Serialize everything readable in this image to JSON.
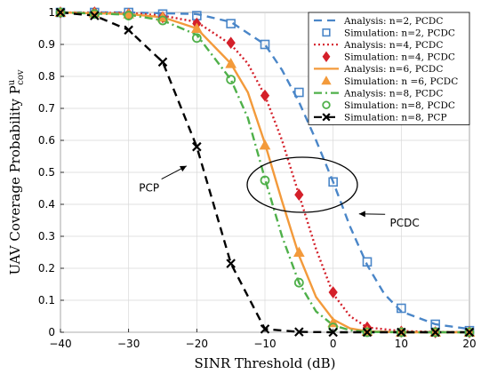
{
  "chart_data": {
    "type": "line",
    "xlabel": "SINR Threshold (dB)",
    "ylabel": "UAV Coverage Probability P",
    "ylabel_sup": "u",
    "ylabel_sub": "cov",
    "xlim": [
      -40,
      20
    ],
    "ylim": [
      0,
      1
    ],
    "xticks": [
      -40,
      -30,
      -20,
      -10,
      0,
      10,
      20
    ],
    "yticks": [
      0,
      0.1,
      0.2,
      0.3,
      0.4,
      0.5,
      0.6,
      0.7,
      0.8,
      0.9,
      1
    ],
    "grid": true,
    "legend_position": "top-right",
    "series": [
      {
        "name": "Analysis: n=2, PCDC",
        "kind": "line",
        "color": "#4a86c8",
        "dash": "dash",
        "x": [
          -40,
          -30,
          -20,
          -15,
          -10,
          -7.5,
          -5,
          -2.5,
          0,
          2.5,
          5,
          7.5,
          10,
          15,
          20
        ],
        "y": [
          1,
          1,
          0.995,
          0.97,
          0.9,
          0.82,
          0.72,
          0.6,
          0.47,
          0.33,
          0.21,
          0.12,
          0.065,
          0.025,
          0.01
        ]
      },
      {
        "name": "Simulation: n=2, PCDC",
        "kind": "marker",
        "marker": "square",
        "color": "#4a86c8",
        "x": [
          -40,
          -35,
          -30,
          -25,
          -20,
          -15,
          -10,
          -5,
          0,
          5,
          10,
          15,
          20
        ],
        "y": [
          1,
          1,
          1,
          0.995,
          0.99,
          0.965,
          0.9,
          0.75,
          0.47,
          0.22,
          0.075,
          0.025,
          0.005
        ]
      },
      {
        "name": "Analysis: n=4, PCDC",
        "kind": "line",
        "color": "#d4202a",
        "dash": "dot",
        "x": [
          -40,
          -30,
          -25,
          -20,
          -15,
          -12.5,
          -10,
          -7.5,
          -5,
          -2.5,
          0,
          2.5,
          5,
          10,
          15,
          20
        ],
        "y": [
          1,
          0.998,
          0.99,
          0.97,
          0.9,
          0.84,
          0.74,
          0.6,
          0.43,
          0.26,
          0.12,
          0.05,
          0.015,
          0.004,
          0.001,
          0
        ]
      },
      {
        "name": "Simulation: n=4, PCDC",
        "kind": "marker",
        "marker": "diamond",
        "color": "#d4202a",
        "x": [
          -40,
          -35,
          -30,
          -25,
          -20,
          -15,
          -10,
          -5,
          0,
          5,
          10,
          15,
          20
        ],
        "y": [
          1,
          1,
          0.995,
          0.985,
          0.965,
          0.905,
          0.74,
          0.43,
          0.125,
          0.015,
          0.002,
          0,
          0
        ]
      },
      {
        "name": "Analysis: n=6, PCDC",
        "kind": "line",
        "color": "#f39a3b",
        "dash": "solid",
        "x": [
          -40,
          -30,
          -25,
          -20,
          -15,
          -12.5,
          -10,
          -7.5,
          -5,
          -2.5,
          0,
          2.5,
          5,
          10,
          20
        ],
        "y": [
          1,
          0.995,
          0.985,
          0.95,
          0.84,
          0.75,
          0.59,
          0.41,
          0.24,
          0.11,
          0.04,
          0.012,
          0.003,
          0,
          0
        ]
      },
      {
        "name": "Simulation: n=6, PCDC",
        "kind": "marker",
        "marker": "triangle",
        "color": "#f39a3b",
        "x": [
          -40,
          -35,
          -30,
          -25,
          -20,
          -15,
          -10,
          -5,
          0,
          5,
          10,
          15,
          20
        ],
        "y": [
          1,
          0.998,
          0.995,
          0.985,
          0.95,
          0.84,
          0.585,
          0.25,
          0.03,
          0.003,
          0,
          0,
          0
        ]
      },
      {
        "name": "Analysis: n=8, PCDC",
        "kind": "line",
        "color": "#4fb04a",
        "dash": "dashdot",
        "x": [
          -40,
          -30,
          -25,
          -20,
          -15,
          -12.5,
          -10,
          -7.5,
          -5,
          -2.5,
          0,
          2.5,
          5,
          10,
          20
        ],
        "y": [
          1,
          0.993,
          0.975,
          0.93,
          0.79,
          0.67,
          0.48,
          0.3,
          0.155,
          0.065,
          0.022,
          0.006,
          0.001,
          0,
          0
        ]
      },
      {
        "name": "Simulation: n=8, PCDC",
        "kind": "marker",
        "marker": "circle",
        "color": "#4fb04a",
        "x": [
          -40,
          -35,
          -30,
          -25,
          -20,
          -15,
          -10,
          -5,
          0,
          5,
          10,
          15,
          20
        ],
        "y": [
          1,
          0.995,
          0.99,
          0.975,
          0.92,
          0.79,
          0.475,
          0.155,
          0.015,
          0,
          0,
          0,
          0
        ]
      },
      {
        "name": "Simulation: n=8, PCP",
        "kind": "both",
        "marker": "x",
        "color": "#000000",
        "dash": "dash",
        "x": [
          -40,
          -35,
          -30,
          -25,
          -20,
          -15,
          -10,
          -5,
          0,
          5,
          10,
          15,
          20
        ],
        "y": [
          1,
          0.99,
          0.945,
          0.845,
          0.58,
          0.215,
          0.01,
          0.001,
          0,
          0,
          0,
          0,
          0
        ]
      }
    ],
    "legend": [
      "Analysis: n=2, PCDC",
      "Simulation: n=2, PCDC",
      "Analysis: n=4, PCDC",
      "Simulation: n=4, PCDC",
      "Analysis: n=6, PCDC",
      "Simulation: n =6, PCDC",
      "Analysis: n=8, PCDC",
      "Simulation: n=8, PCDC",
      "Simulation: n=8, PCP"
    ],
    "annotations": [
      {
        "text": "PCP",
        "x": -27,
        "y": 0.44,
        "arrow_to": [
          -21.5,
          0.52
        ]
      },
      {
        "text": "PCDC",
        "x": 10.5,
        "y": 0.33,
        "arrow_to": [
          3.8,
          0.37
        ]
      }
    ]
  }
}
